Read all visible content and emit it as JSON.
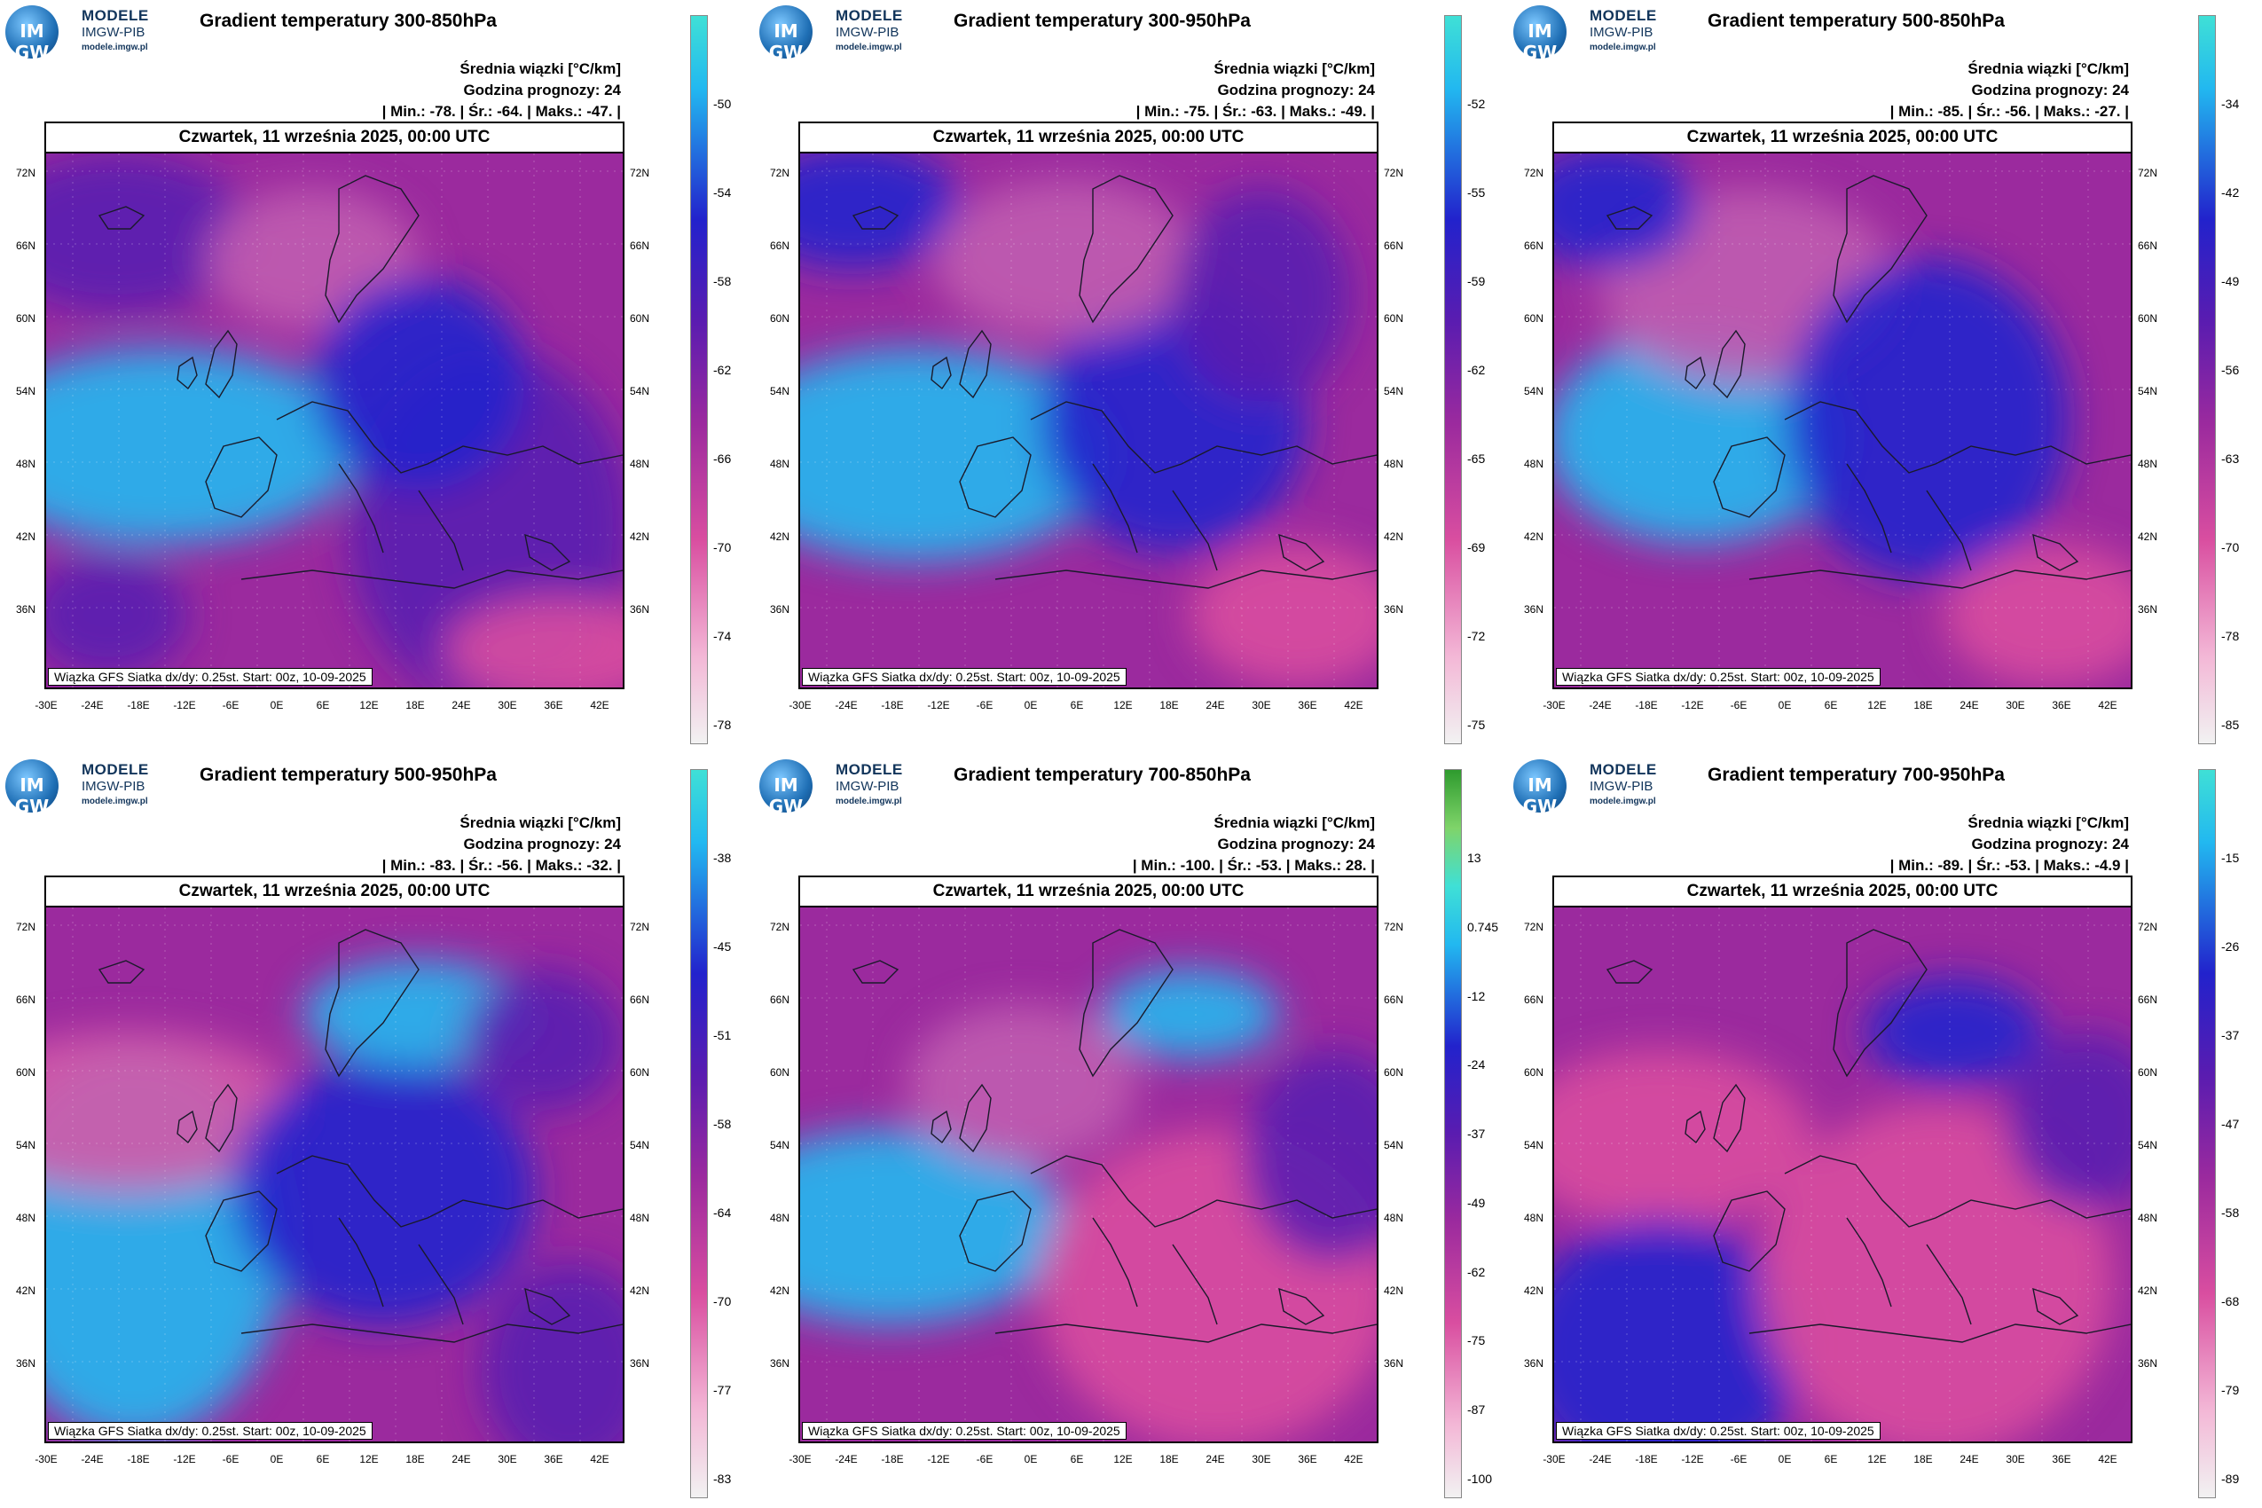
{
  "logo": {
    "text1": "MODELE",
    "text2": "IMGW-PIB",
    "text3": "modele.imgw.pl",
    "mark": "IM GW"
  },
  "common": {
    "subtitle_line1": "Średnia wiązki [°C/km]",
    "forecast_hour": "Godzina prognozy: 24",
    "date_header": "Czwartek, 11 września 2025, 00:00 UTC",
    "footer": "Wiązka GFS Siatka dx/dy: 0.25st. Start: 00z, 10-09-2025",
    "lat_labels": [
      "72N",
      "66N",
      "60N",
      "54N",
      "48N",
      "42N",
      "36N"
    ],
    "lon_labels": [
      "-30E",
      "-24E",
      "-18E",
      "-12E",
      "-6E",
      "0E",
      "6E",
      "12E",
      "18E",
      "24E",
      "30E",
      "36E",
      "42E"
    ]
  },
  "colors": {
    "deep_pink": "#d94ea0",
    "magenta": "#9b2a9e",
    "purple": "#5a1cb0",
    "blue": "#2222cc",
    "cyan": "#22b8f0"
  },
  "panels": [
    {
      "title": "Gradient temperatury 300-850hPa",
      "stats": "| Min.: -78. | Śr.: -64. | Maks.: -47. |",
      "cbar_ticks": [
        "-50",
        "-54",
        "-58",
        "-62",
        "-66",
        "-70",
        "-74",
        "-78"
      ],
      "cbar_type": "standard",
      "map_style": "a"
    },
    {
      "title": "Gradient temperatury 300-950hPa",
      "stats": "| Min.: -75. | Śr.: -63. | Maks.: -49. |",
      "cbar_ticks": [
        "-52",
        "-55",
        "-59",
        "-62",
        "-65",
        "-69",
        "-72",
        "-75"
      ],
      "cbar_type": "standard",
      "map_style": "b"
    },
    {
      "title": "Gradient temperatury 500-850hPa",
      "stats": "| Min.: -85. | Śr.: -56. | Maks.: -27. |",
      "cbar_ticks": [
        "-34",
        "-42",
        "-49",
        "-56",
        "-63",
        "-70",
        "-78",
        "-85"
      ],
      "cbar_type": "standard",
      "map_style": "c"
    },
    {
      "title": "Gradient temperatury 500-950hPa",
      "stats": "| Min.: -83. | Śr.: -56. | Maks.: -32. |",
      "cbar_ticks": [
        "-38",
        "-45",
        "-51",
        "-58",
        "-64",
        "-70",
        "-77",
        "-83"
      ],
      "cbar_type": "standard",
      "map_style": "d"
    },
    {
      "title": "Gradient temperatury 700-850hPa",
      "stats": "| Min.: -100. | Śr.: -53. | Maks.: 28. |",
      "cbar_ticks": [
        "13",
        "0.745",
        "-12",
        "-24",
        "-37",
        "-49",
        "-62",
        "-75",
        "-87",
        "-100"
      ],
      "cbar_type": "green",
      "map_style": "e"
    },
    {
      "title": "Gradient temperatury 700-950hPa",
      "stats": "| Min.: -89. | Śr.: -53. | Maks.: -4.9 |",
      "cbar_ticks": [
        "-15",
        "-26",
        "-37",
        "-47",
        "-58",
        "-68",
        "-79",
        "-89"
      ],
      "cbar_type": "standard",
      "map_style": "f"
    }
  ]
}
